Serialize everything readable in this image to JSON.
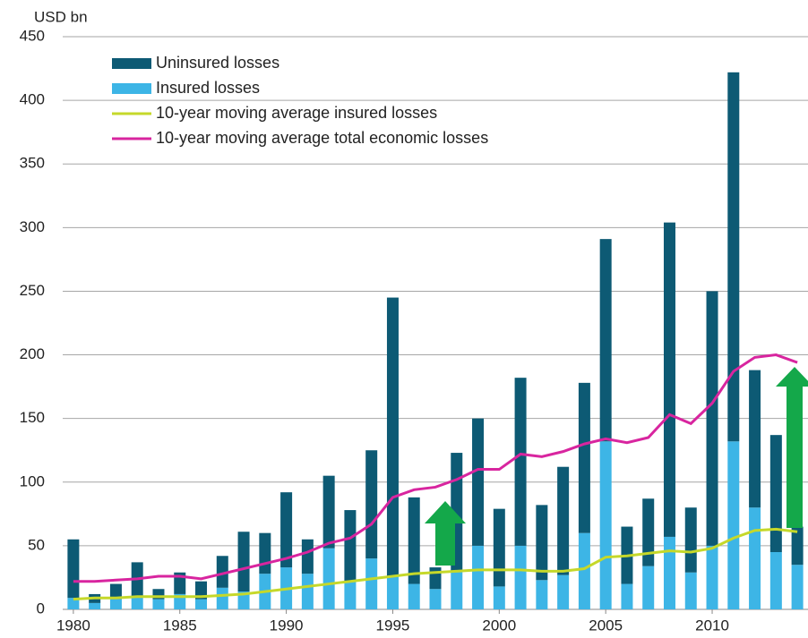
{
  "chart_data": {
    "type": "bar-line",
    "y_label": "USD bn",
    "x": [
      1980,
      1981,
      1982,
      1983,
      1984,
      1985,
      1986,
      1987,
      1988,
      1989,
      1990,
      1991,
      1992,
      1993,
      1994,
      1995,
      1996,
      1997,
      1998,
      1999,
      2000,
      2001,
      2002,
      2003,
      2004,
      2005,
      2006,
      2007,
      2008,
      2009,
      2010,
      2011,
      2012,
      2013,
      2014
    ],
    "xlim": [
      1979.5,
      2014.5
    ],
    "xticks": [
      1980,
      1985,
      1990,
      1995,
      2000,
      2005,
      2010
    ],
    "ylim": [
      0,
      450
    ],
    "yticks": [
      0,
      50,
      100,
      150,
      200,
      250,
      300,
      350,
      400,
      450
    ],
    "grid": true,
    "legend": "upper left",
    "series": [
      {
        "name": "Uninsured losses",
        "type": "bar",
        "color": "#0d5a74",
        "values": [
          46,
          7,
          12,
          27,
          8,
          17,
          14,
          25,
          47,
          32,
          59,
          27,
          57,
          56,
          85,
          219,
          68,
          17,
          93,
          100,
          61,
          132,
          59,
          85,
          118,
          159,
          45,
          53,
          247,
          51,
          200,
          290,
          108,
          92,
          30
        ]
      },
      {
        "name": "Insured losses",
        "type": "bar",
        "color": "#3db5e6",
        "values": [
          9,
          5,
          8,
          10,
          8,
          12,
          8,
          17,
          14,
          28,
          33,
          28,
          48,
          22,
          40,
          26,
          20,
          16,
          30,
          50,
          18,
          50,
          23,
          27,
          60,
          132,
          20,
          34,
          57,
          29,
          50,
          132,
          80,
          45,
          35
        ]
      },
      {
        "name": "10-year moving average insured losses",
        "type": "line",
        "color": "#c5d82a",
        "values": [
          8,
          9,
          9,
          10,
          10,
          10,
          10,
          11,
          12,
          14,
          16,
          18,
          20,
          22,
          24,
          26,
          28,
          29,
          30,
          31,
          31,
          31,
          30,
          30,
          32,
          41,
          42,
          44,
          46,
          45,
          48,
          56,
          62,
          63,
          61
        ]
      },
      {
        "name": "10-year moving average total economic losses",
        "type": "line",
        "color": "#d8259f",
        "values": [
          22,
          22,
          23,
          24,
          26,
          26,
          24,
          28,
          32,
          36,
          40,
          45,
          52,
          56,
          67,
          88,
          94,
          96,
          102,
          110,
          110,
          122,
          120,
          124,
          130,
          134,
          131,
          135,
          153,
          146,
          162,
          187,
          198,
          200,
          194
        ]
      }
    ]
  }
}
